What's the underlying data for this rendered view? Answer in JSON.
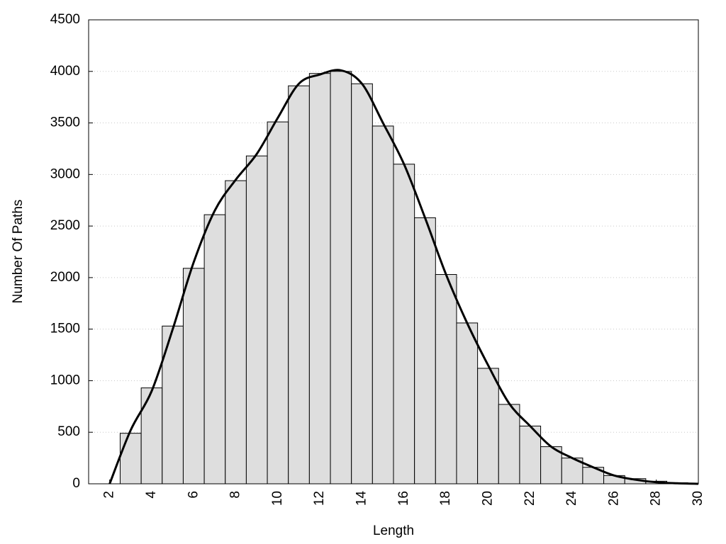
{
  "chart_data": {
    "type": "histogram",
    "xlabel": "Length",
    "ylabel": "Number Of Paths",
    "bins": [
      2.5,
      3.5,
      4.5,
      5.5,
      6.5,
      7.5,
      8.5,
      9.5,
      10.5,
      11.5,
      12.5,
      13.5,
      14.5,
      15.5,
      16.5,
      17.5,
      18.5,
      19.5,
      20.5,
      21.5,
      22.5,
      23.5,
      24.5,
      25.5,
      26.5,
      27.5,
      28.5,
      29.5
    ],
    "values": [
      490,
      930,
      1530,
      2090,
      2610,
      2940,
      3180,
      3510,
      3860,
      3980,
      4000,
      3880,
      3470,
      3100,
      2580,
      2030,
      1560,
      1120,
      770,
      560,
      360,
      250,
      160,
      80,
      50,
      25,
      10
    ],
    "color": "#dedede",
    "line": {
      "x": [
        2,
        3,
        4,
        5,
        6,
        7,
        8,
        9,
        10,
        11,
        12,
        13,
        14,
        15,
        16,
        17,
        18,
        19,
        20,
        21,
        22,
        23,
        24,
        25,
        26,
        27,
        28,
        29,
        30
      ],
      "values": [
        0,
        520,
        900,
        1500,
        2150,
        2650,
        2950,
        3200,
        3550,
        3880,
        3970,
        4010,
        3880,
        3500,
        3100,
        2580,
        2030,
        1560,
        1150,
        780,
        560,
        360,
        250,
        160,
        80,
        40,
        15,
        5,
        0
      ],
      "color": "#000000"
    },
    "xlim": [
      1,
      30
    ],
    "ylim": [
      0,
      4500
    ],
    "xticks": [
      2,
      4,
      6,
      8,
      10,
      12,
      14,
      16,
      18,
      20,
      22,
      24,
      26,
      28,
      30
    ],
    "yticks": [
      0,
      500,
      1000,
      1500,
      2000,
      2500,
      3000,
      3500,
      4000,
      4500
    ],
    "grid": true
  }
}
